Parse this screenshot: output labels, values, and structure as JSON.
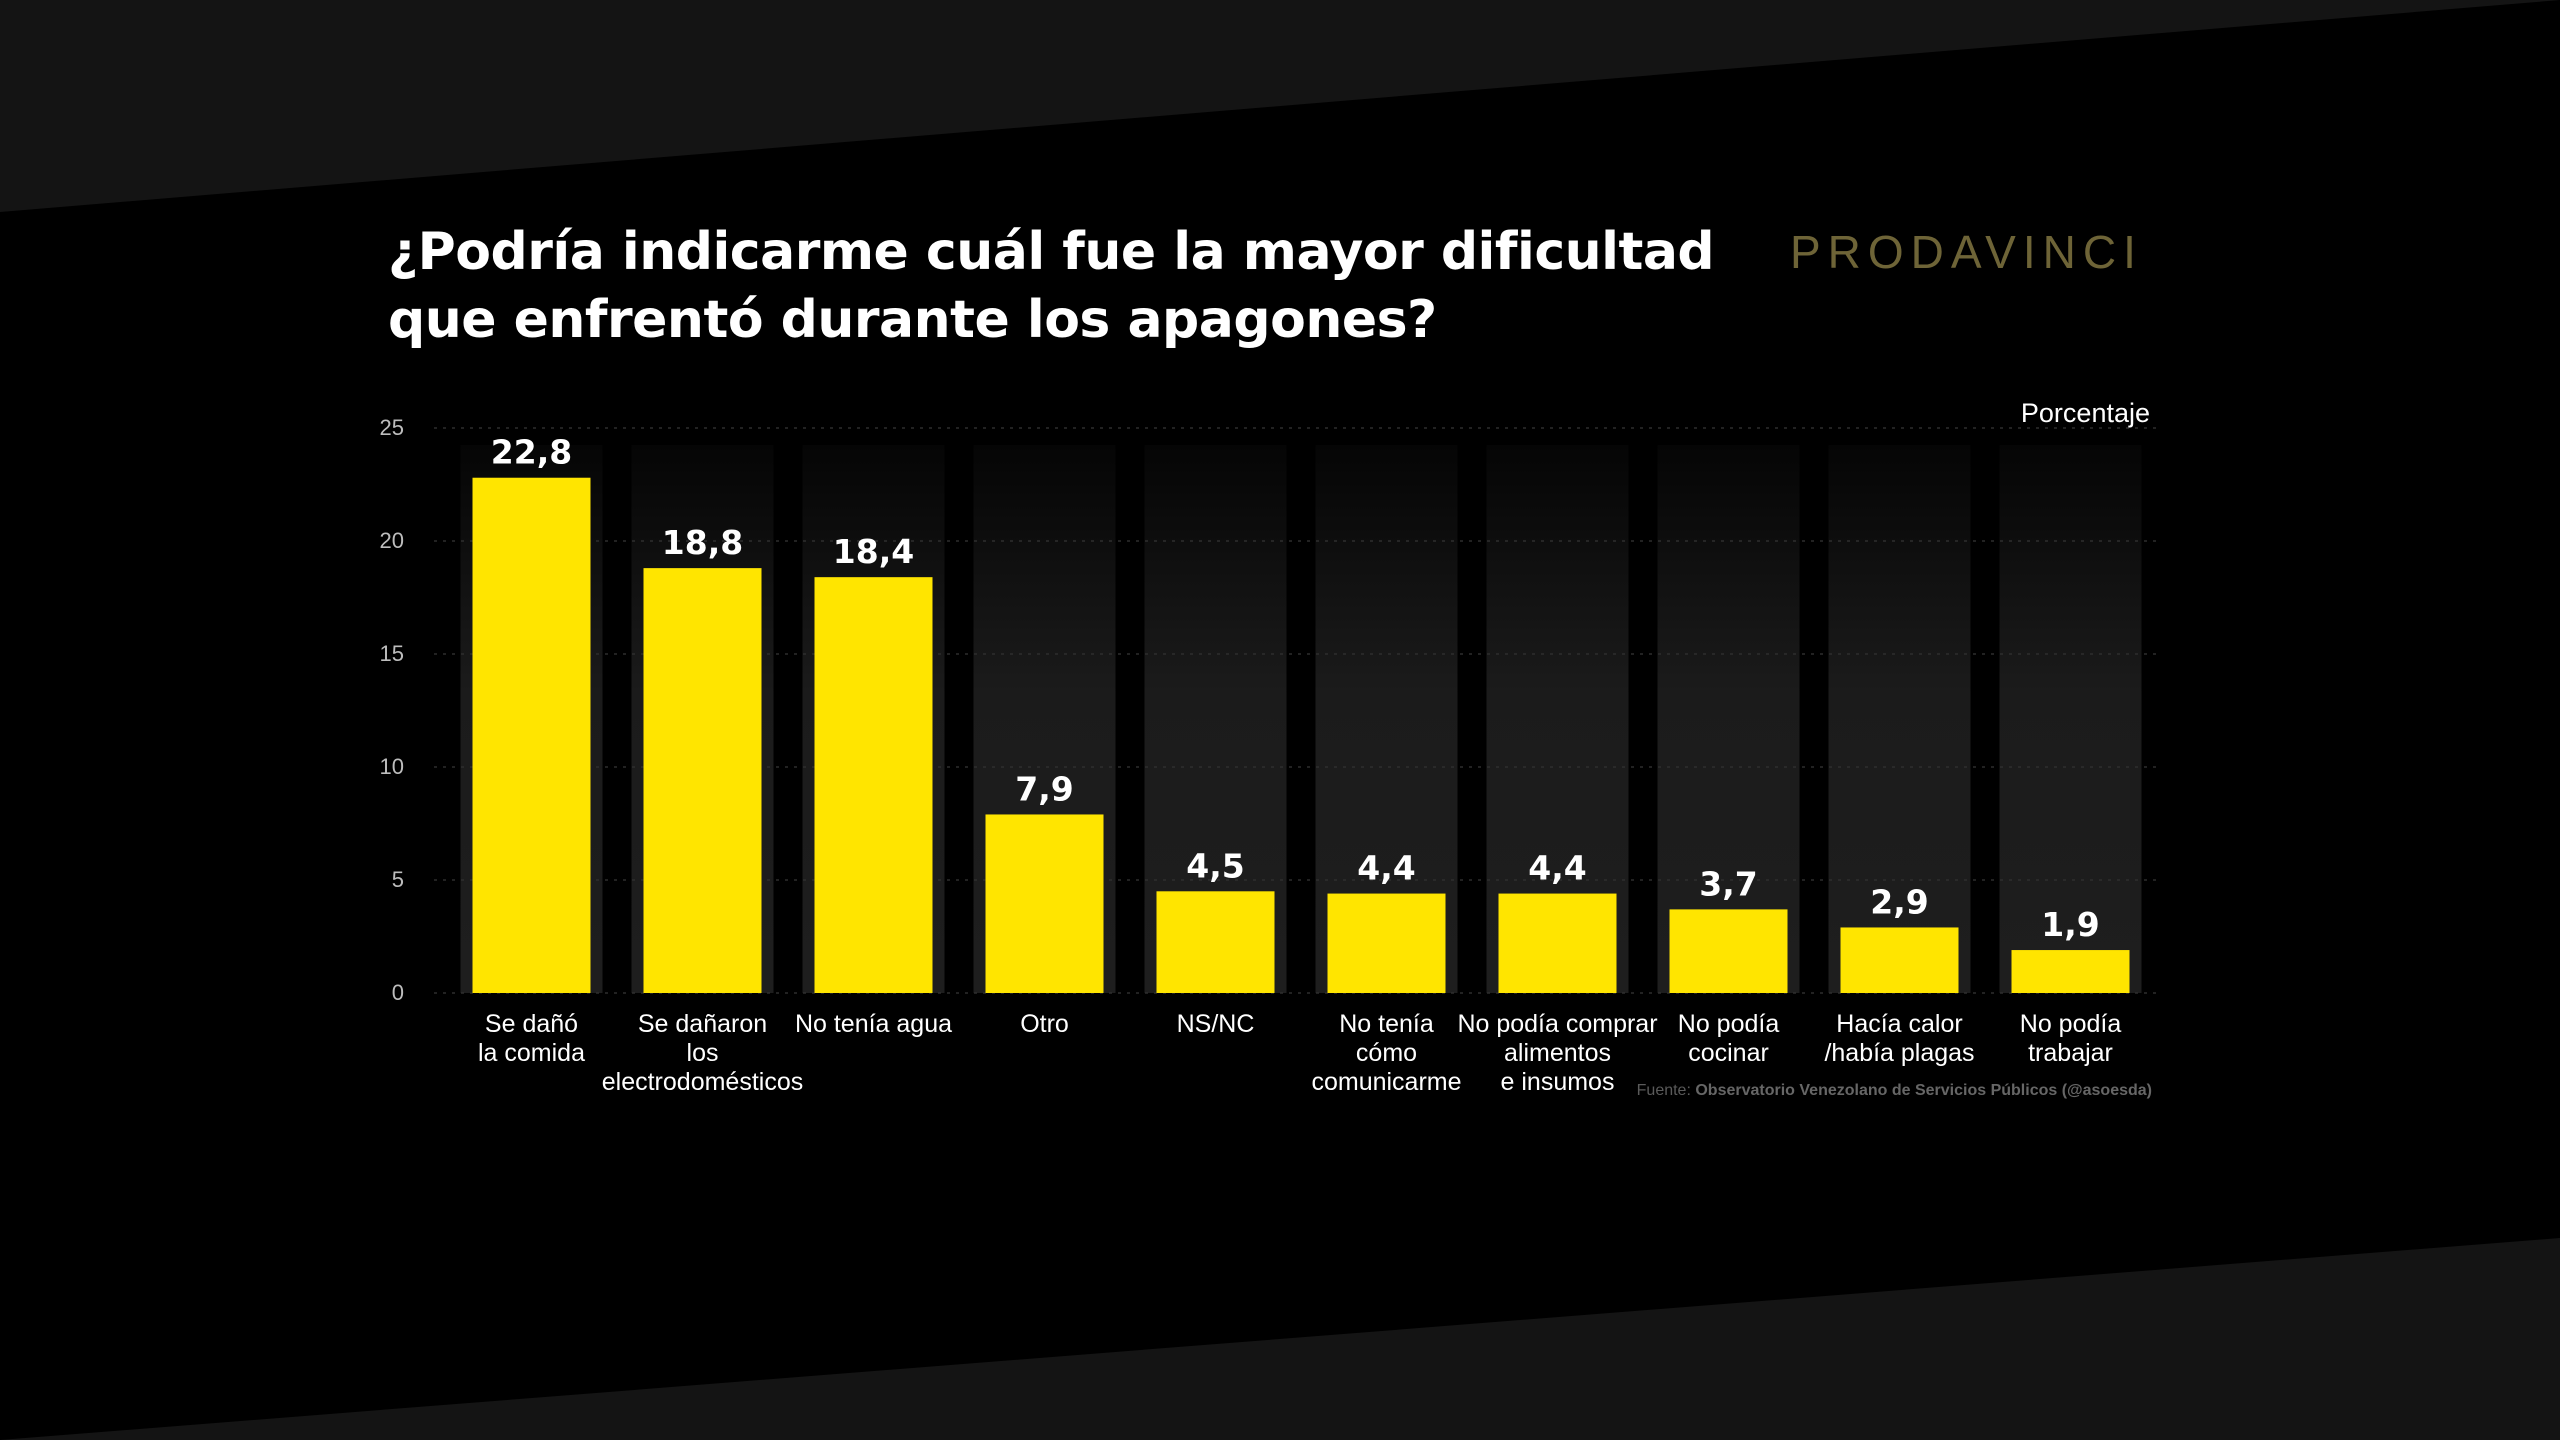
{
  "header": {
    "title_line1": "¿Podría indicarme cuál fue la mayor dificultad",
    "title_line2": "que enfrentó durante los apagones?",
    "logo": "PRODAVINCI"
  },
  "footer": {
    "source_prefix": "Fuente:",
    "source_name": "Observatorio Venezolano de Servicios Públicos (@asoesda)"
  },
  "colors": {
    "background": "#000000",
    "band": "#141414",
    "bar": "#ffe500",
    "column_shade": "#1b1b1b",
    "text": "#ffffff",
    "axis_text": "#bdbdbd",
    "logo": "#6e6437"
  },
  "chart_data": {
    "type": "bar",
    "title": "¿Podría indicarme cuál fue la mayor dificultad que enfrentó durante los apagones?",
    "ylabel": "Porcentaje",
    "ylim": [
      0,
      25
    ],
    "yticks": [
      0,
      5,
      10,
      15,
      20,
      25
    ],
    "grid": true,
    "categories": [
      [
        "Se dañó",
        "la comida"
      ],
      [
        "Se dañaron",
        "los",
        "electrodomésticos"
      ],
      [
        "No tenía agua"
      ],
      [
        "Otro"
      ],
      [
        "NS/NC"
      ],
      [
        "No tenía",
        "cómo",
        "comunicarme"
      ],
      [
        "No podía comprar",
        "alimentos",
        "e insumos"
      ],
      [
        "No podía",
        "cocinar"
      ],
      [
        "Hacía calor",
        "/había plagas"
      ],
      [
        "No podía",
        "trabajar"
      ]
    ],
    "values": [
      22.8,
      18.8,
      18.4,
      7.9,
      4.5,
      4.4,
      4.4,
      3.7,
      2.9,
      1.9
    ],
    "value_labels": [
      "22,8",
      "18,8",
      "18,4",
      "7,9",
      "4,5",
      "4,4",
      "4,4",
      "3,7",
      "2,9",
      "1,9"
    ]
  }
}
